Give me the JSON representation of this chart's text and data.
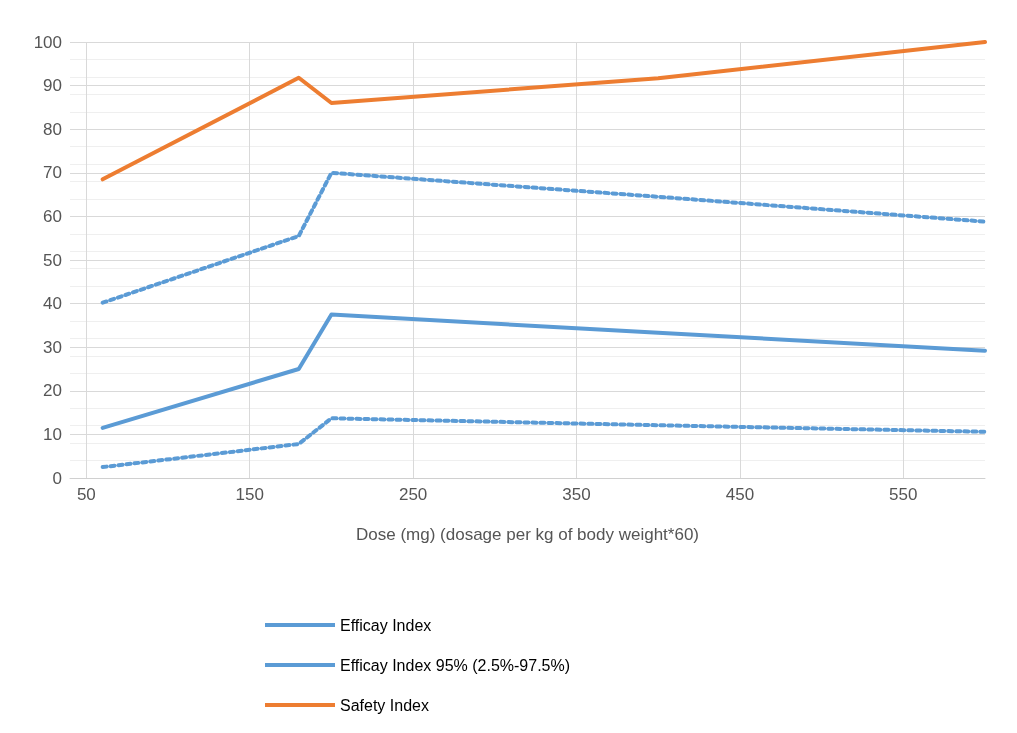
{
  "chart_data": {
    "type": "line",
    "xlabel": "Dose (mg) (dosage per kg of body weight*60)",
    "x": [
      60,
      180,
      200,
      400,
      600
    ],
    "series": [
      {
        "name": "Efficay Index",
        "color": "#5b9bd5",
        "line_style": "solid",
        "values": [
          11.5,
          25,
          37.5,
          33.3,
          29.2
        ]
      },
      {
        "name": "Efficay Index 95% (2.5%-97.5%)",
        "color": "#5b9bd5",
        "line_style": "dotted",
        "values": [
          40.2,
          55.5,
          70,
          64.5,
          58.8
        ]
      },
      {
        "name": null,
        "color": "#5b9bd5",
        "line_style": "dotted",
        "values": [
          2.5,
          7.8,
          13.7,
          12.1,
          10.6
        ]
      },
      {
        "name": "Safety Index",
        "color": "#ed7d31",
        "line_style": "solid",
        "values": [
          68.5,
          91.8,
          86,
          91.7,
          100
        ]
      }
    ],
    "xlim": [
      40,
      600
    ],
    "xticks": [
      50,
      150,
      250,
      350,
      450,
      550
    ],
    "ylim": [
      0,
      100
    ],
    "yticks": [
      0,
      10,
      20,
      30,
      40,
      50,
      60,
      70,
      80,
      90,
      100
    ],
    "grid": true,
    "legend": "bottom",
    "marker": "none"
  }
}
